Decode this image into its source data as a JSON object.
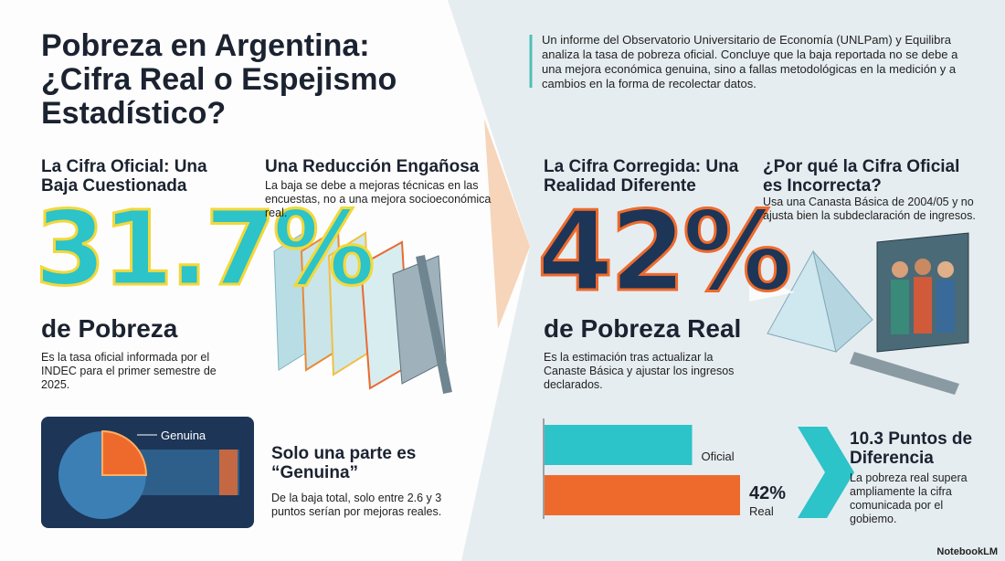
{
  "header": {
    "title": "Pobreza en Argentina: ¿Cifra Real o Espejismo Estadístico?",
    "intro": "Un informe del Observatorio Universitario de Economía (UNLPam) y Equilibra analiza la tasa de pobreza oficial. Concluye que la baja reportada no se debe a una mejora económica genuina, sino a fallas metodológicas en la medición y a cambios en la forma de recolectar datos."
  },
  "official": {
    "heading": "La Cifra Oficial: Una Baja Cuestionada",
    "figure": "31.7%",
    "caption": "de Pobreza",
    "text": "Es la tasa oficial informada por el INDEC para el primer semestre de 2025."
  },
  "reduction": {
    "heading": "Una Reducción Engañosa",
    "text": "La baja se debe a mejoras técnicas en las encuestas, no a una mejora socioeconómica real."
  },
  "corrected": {
    "heading": "La Cifra Corregida: Una Realidad Diferente",
    "figure": "42%",
    "caption": "de Pobreza Real",
    "text": "Es la estimación tras actualizar la Canaste Básica y ajustar los ingresos declarados."
  },
  "why": {
    "heading": "¿Por qué la Cifra Oficial es Incorrecta?",
    "text": "Usa una Canasta Básica de 2004/05 y no ajusta bien la subdeclaración de ingresos."
  },
  "genuine": {
    "slice_label": "Genuina",
    "heading": "Solo una parte es “Genuina”",
    "text": "De la baja total, solo entre 2.6 y 3 puntos serían por mejoras reales."
  },
  "comparison": {
    "bars": [
      {
        "label": "Oficial",
        "value": 31.7,
        "color": "#2cc3c9"
      },
      {
        "label": "Real",
        "value": 42,
        "value_label": "42%",
        "color": "#ee6a2c"
      }
    ]
  },
  "difference": {
    "heading": "10.3 Puntos de Diferencia",
    "text": "La pobreza real supera ampliamente la cifra comunicada por el gobiemo."
  },
  "footer": {
    "brand": "NotebookLM"
  }
}
